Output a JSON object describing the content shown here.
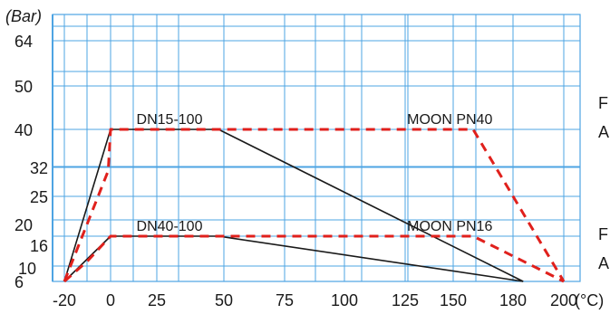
{
  "chart_data": {
    "type": "line",
    "ylabel": "(Bar)",
    "x_unit": "(°C)",
    "x_ticks": [
      "-20",
      "0",
      "25",
      "50",
      "75",
      "100",
      "125",
      "150",
      "180",
      "200"
    ],
    "y_ticks": [
      "6",
      "10",
      "16",
      "20",
      "25",
      "32",
      "40",
      "50",
      "64"
    ],
    "grid": true,
    "colors": {
      "grid": "#4ea4e3",
      "solid": "#1a1a1a",
      "dashed": "#e0201c"
    },
    "series": [
      {
        "style": "solid",
        "points": [
          [
            -20,
            6
          ],
          [
            0,
            40
          ],
          [
            48,
            40
          ],
          [
            184,
            6
          ]
        ]
      },
      {
        "style": "solid",
        "points": [
          [
            -20,
            6
          ],
          [
            0,
            16
          ],
          [
            48,
            16
          ],
          [
            184,
            6
          ]
        ]
      },
      {
        "style": "dashed",
        "points": [
          [
            -20,
            6
          ],
          [
            -1,
            31
          ],
          [
            0,
            40
          ],
          [
            160,
            40
          ],
          [
            200,
            6
          ]
        ]
      },
      {
        "style": "dashed",
        "points": [
          [
            -20,
            6
          ],
          [
            -10,
            11
          ],
          [
            0,
            16
          ],
          [
            160,
            16
          ],
          [
            200,
            6
          ]
        ]
      }
    ],
    "annotations": [
      {
        "text": "DN15-100",
        "x": 14,
        "y": 40
      },
      {
        "text": "MOON PN40",
        "x": 126,
        "y": 40
      },
      {
        "text": "DN40-100",
        "x": 14,
        "y": 16
      },
      {
        "text": "MOON PN16",
        "x": 126,
        "y": 16
      }
    ],
    "side_letters": [
      {
        "text": "F",
        "y": 40
      },
      {
        "text": "A",
        "y": 40
      },
      {
        "text": "F",
        "y": 16
      },
      {
        "text": "A",
        "y": 16
      }
    ]
  }
}
